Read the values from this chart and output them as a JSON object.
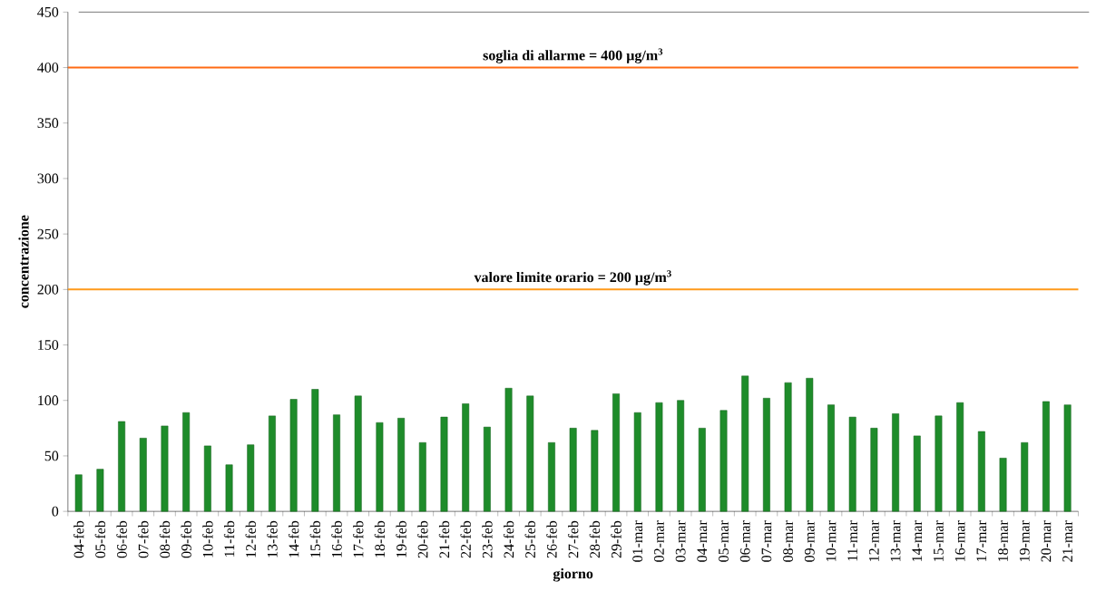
{
  "chart_data": {
    "type": "bar",
    "xlabel": "giorno",
    "ylabel": "concentrazione",
    "categories": [
      "04-feb",
      "05-feb",
      "06-feb",
      "07-feb",
      "08-feb",
      "09-feb",
      "10-feb",
      "11-feb",
      "12-feb",
      "13-feb",
      "14-feb",
      "15-feb",
      "16-feb",
      "17-feb",
      "18-feb",
      "19-feb",
      "20-feb",
      "21-feb",
      "22-feb",
      "23-feb",
      "24-feb",
      "25-feb",
      "26-feb",
      "27-feb",
      "28-feb",
      "29-feb",
      "01-mar",
      "02-mar",
      "03-mar",
      "04-mar",
      "05-mar",
      "06-mar",
      "07-mar",
      "08-mar",
      "09-mar",
      "10-mar",
      "11-mar",
      "12-mar",
      "13-mar",
      "14-mar",
      "15-mar",
      "16-mar",
      "17-mar",
      "18-mar",
      "19-mar",
      "20-mar",
      "21-mar"
    ],
    "values": [
      33,
      38,
      81,
      66,
      77,
      89,
      59,
      42,
      60,
      86,
      101,
      110,
      87,
      104,
      80,
      84,
      62,
      85,
      97,
      76,
      111,
      104,
      62,
      75,
      73,
      106,
      89,
      98,
      100,
      75,
      91,
      122,
      102,
      116,
      120,
      96,
      85,
      75,
      88,
      68,
      86,
      98,
      72,
      48,
      62,
      99,
      96
    ],
    "color": "#1e8c2a",
    "ylim": [
      0,
      450
    ],
    "yticks": [
      0,
      50,
      100,
      150,
      200,
      250,
      300,
      350,
      400,
      450
    ],
    "ref_lines": [
      {
        "axis": "y",
        "value": 400,
        "label": "soglia di allarme = 400 µg/m$^{3}$",
        "color": "#ff6a13"
      },
      {
        "axis": "y",
        "value": 200,
        "label": "valore limite orario = 200 µg/m$^{3}$",
        "color": "#ff9a1a"
      }
    ],
    "grid": false
  }
}
